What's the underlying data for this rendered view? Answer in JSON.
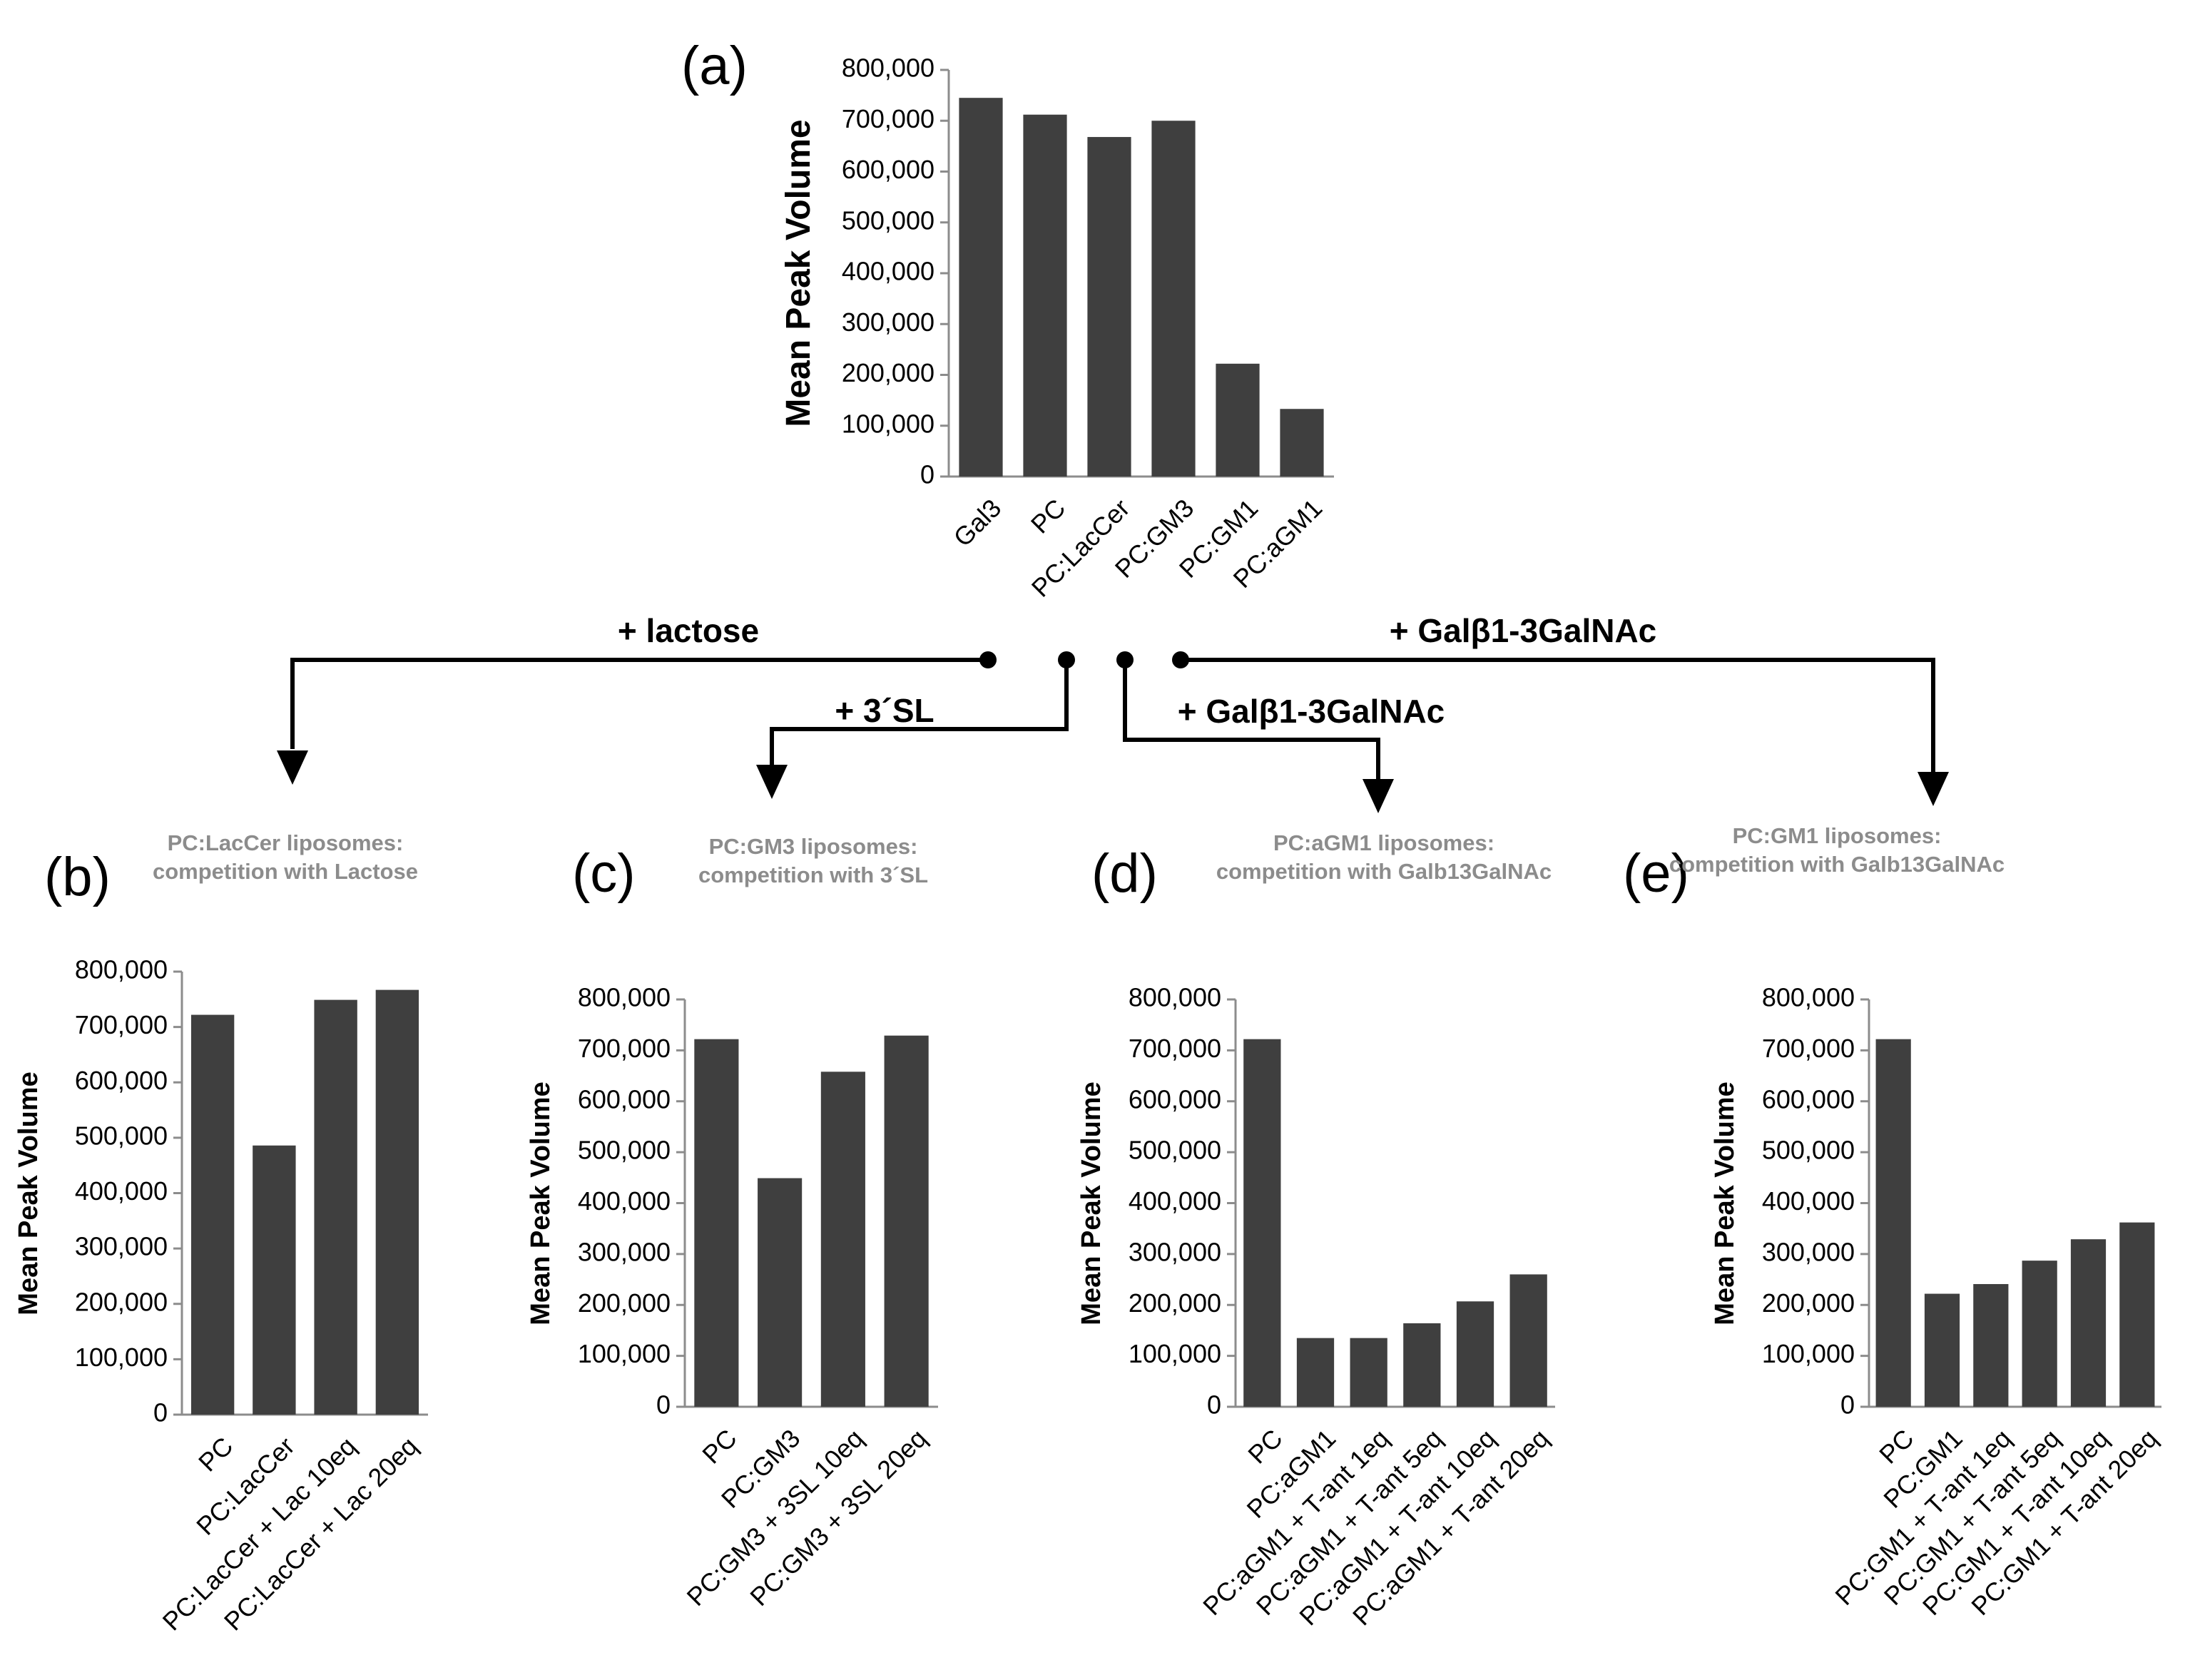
{
  "colors": {
    "bar": "#3f3f3f",
    "axis": "#8c8c8c",
    "subtitle": "#8c8c8c",
    "connector": "#000000"
  },
  "chart_data": [
    {
      "id": "a",
      "panel_label": "(a)",
      "type": "bar",
      "subtitle": null,
      "ylabel": "Mean Peak Volume",
      "ylim": [
        0,
        800000
      ],
      "ticks": [
        "0",
        "100,000",
        "200,000",
        "300,000",
        "400,000",
        "500,000",
        "600,000",
        "700,000",
        "800,000"
      ],
      "categories": [
        "Gal3",
        "PC",
        "PC:LacCer",
        "PC:GM3",
        "PC:GM1",
        "PC:aGM1"
      ],
      "values": [
        745000,
        712000,
        668000,
        700000,
        222000,
        133000
      ]
    },
    {
      "id": "b",
      "panel_label": "(b)",
      "type": "bar",
      "subtitle": [
        "PC:LacCer liposomes:",
        "competition with Lactose"
      ],
      "ylabel": "Mean Peak Volume",
      "ylim": [
        0,
        800000
      ],
      "ticks": [
        "0",
        "100,000",
        "200,000",
        "300,000",
        "400,000",
        "500,000",
        "600,000",
        "700,000",
        "800,000"
      ],
      "categories": [
        "PC",
        "PC:LacCer",
        "PC:LacCer + Lac 10eq",
        "PC:LacCer + Lac 20eq"
      ],
      "values": [
        722000,
        486000,
        749000,
        767000
      ]
    },
    {
      "id": "c",
      "panel_label": "(c)",
      "type": "bar",
      "subtitle": [
        "PC:GM3 liposomes:",
        "competition with 3´SL"
      ],
      "ylabel": "Mean Peak Volume",
      "ylim": [
        0,
        800000
      ],
      "ticks": [
        "0",
        "100,000",
        "200,000",
        "300,000",
        "400,000",
        "500,000",
        "600,000",
        "700,000",
        "800,000"
      ],
      "categories": [
        "PC",
        "PC:GM3",
        "PC:GM3 + 3SL 10eq",
        "PC:GM3 + 3SL 20eq"
      ],
      "values": [
        722000,
        449000,
        658000,
        729000
      ]
    },
    {
      "id": "d",
      "panel_label": "(d)",
      "type": "bar",
      "subtitle": [
        "PC:aGM1 liposomes:",
        "competition with Galb13GalNAc"
      ],
      "ylabel": "Mean Peak Volume",
      "ylim": [
        0,
        800000
      ],
      "ticks": [
        "0",
        "100,000",
        "200,000",
        "300,000",
        "400,000",
        "500,000",
        "600,000",
        "700,000",
        "800,000"
      ],
      "categories": [
        "PC",
        "PC:aGM1",
        "PC:aGM1 + T-ant 1eq",
        "PC:aGM1 + T-ant 5eq",
        "PC:aGM1 + T-ant 10eq",
        "PC:aGM1 + T-ant 20eq"
      ],
      "values": [
        722000,
        135000,
        135000,
        164000,
        207000,
        260000
      ]
    },
    {
      "id": "e",
      "panel_label": "(e)",
      "type": "bar",
      "subtitle": [
        "PC:GM1 liposomes:",
        "competition with Galb13GalNAc"
      ],
      "ylabel": "Mean Peak Volume",
      "ylim": [
        0,
        800000
      ],
      "ticks": [
        "0",
        "100,000",
        "200,000",
        "300,000",
        "400,000",
        "500,000",
        "600,000",
        "700,000",
        "800,000"
      ],
      "categories": [
        "PC",
        "PC:GM1",
        "PC:GM1 + T-ant 1eq",
        "PC:GM1 + T-ant 5eq",
        "PC:GM1 + T-ant 10eq",
        "PC:GM1 + T-ant 20eq"
      ],
      "values": [
        722000,
        222000,
        241000,
        287000,
        329000,
        362000
      ]
    }
  ],
  "connectors": [
    {
      "id": "lactose",
      "label": "+ lactose",
      "target": "b"
    },
    {
      "id": "3sl",
      "label": "+ 3´SL",
      "target": "c"
    },
    {
      "id": "galb-d",
      "label": "+ Galβ1-3GalNAc",
      "target": "d"
    },
    {
      "id": "galb-e",
      "label": "+ Galβ1-3GalNAc",
      "target": "e"
    }
  ]
}
